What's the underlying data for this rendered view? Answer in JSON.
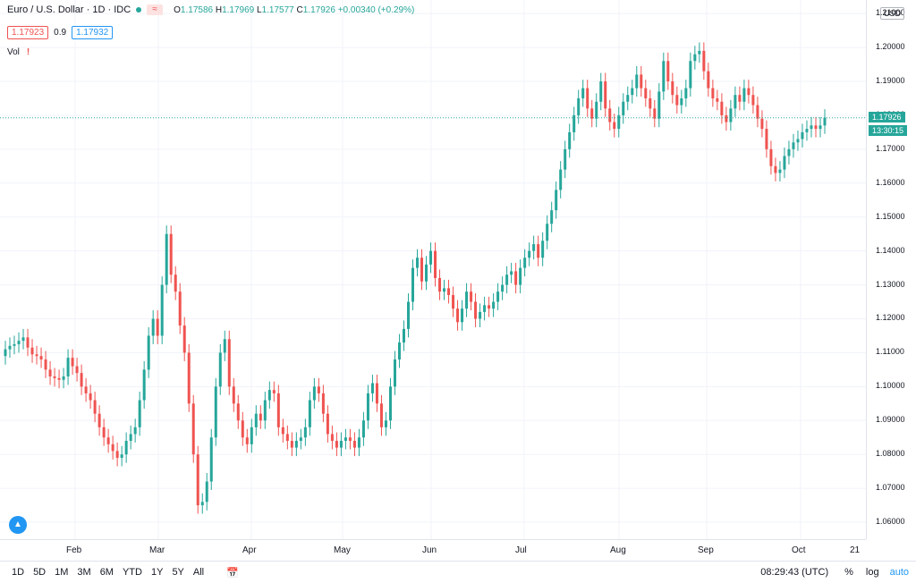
{
  "legend": {
    "symbol": "Euro / U.S. Dollar · 1D · IDC",
    "ohlc": {
      "o": "1.17586",
      "h": "1.17969",
      "l": "1.17577",
      "c": "1.17926",
      "chg": "+0.00340 (+0.29%)"
    },
    "sell": "1.17923",
    "spread": "0.9",
    "buy": "1.17932",
    "vol_label": "Vol"
  },
  "currency": "USD",
  "last_price": "1.17926",
  "countdown": "13:30:15",
  "bottom": {
    "ranges": [
      "1D",
      "5D",
      "1M",
      "3M",
      "6M",
      "YTD",
      "1Y",
      "5Y",
      "All"
    ],
    "time": "08:29:43 (UTC)",
    "pct": "%",
    "log": "log",
    "auto": "auto"
  },
  "colors": {
    "up": "#26a69a",
    "down": "#ef5350",
    "grid": "#f0f3fa",
    "accent": "#2196f3"
  },
  "chart_data": {
    "type": "candlestick",
    "title": "Euro / U.S. Dollar · 1D · IDC",
    "ylim": [
      1.055,
      1.214
    ],
    "y_ticks": [
      "1.21000",
      "1.20000",
      "1.19000",
      "1.18000",
      "1.17000",
      "1.16000",
      "1.15000",
      "1.14000",
      "1.13000",
      "1.12000",
      "1.11000",
      "1.10000",
      "1.09000",
      "1.08000",
      "1.07000",
      "1.06000"
    ],
    "x_ticks": [
      "Feb",
      "Mar",
      "Apr",
      "May",
      "Jun",
      "Jul",
      "Aug",
      "Sep",
      "Oct",
      "21"
    ],
    "closes": [
      1.111,
      1.112,
      1.1125,
      1.1135,
      1.1145,
      1.1115,
      1.1095,
      1.109,
      1.108,
      1.105,
      1.103,
      1.1025,
      1.102,
      1.103,
      1.1085,
      1.106,
      1.104,
      1.1,
      1.098,
      1.096,
      1.092,
      1.088,
      1.085,
      1.083,
      1.081,
      1.079,
      1.08,
      1.084,
      1.086,
      1.088,
      1.096,
      1.105,
      1.115,
      1.12,
      1.115,
      1.13,
      1.145,
      1.133,
      1.128,
      1.118,
      1.11,
      1.095,
      1.08,
      1.065,
      1.066,
      1.072,
      1.085,
      1.1,
      1.11,
      1.114,
      1.1,
      1.095,
      1.09,
      1.085,
      1.083,
      1.088,
      1.092,
      1.09,
      1.096,
      1.099,
      1.098,
      1.088,
      1.086,
      1.084,
      1.082,
      1.084,
      1.085,
      1.088,
      1.096,
      1.1,
      1.098,
      1.092,
      1.086,
      1.084,
      1.082,
      1.084,
      1.085,
      1.084,
      1.082,
      1.085,
      1.09,
      1.098,
      1.101,
      1.095,
      1.088,
      1.09,
      1.1,
      1.108,
      1.113,
      1.117,
      1.125,
      1.135,
      1.138,
      1.131,
      1.136,
      1.14,
      1.132,
      1.128,
      1.129,
      1.127,
      1.123,
      1.119,
      1.123,
      1.128,
      1.125,
      1.12,
      1.122,
      1.124,
      1.123,
      1.125,
      1.128,
      1.13,
      1.133,
      1.134,
      1.13,
      1.135,
      1.138,
      1.14,
      1.142,
      1.138,
      1.143,
      1.148,
      1.152,
      1.158,
      1.164,
      1.17,
      1.175,
      1.18,
      1.185,
      1.188,
      1.182,
      1.179,
      1.184,
      1.19,
      1.182,
      1.178,
      1.176,
      1.18,
      1.184,
      1.186,
      1.188,
      1.192,
      1.188,
      1.185,
      1.182,
      1.179,
      1.187,
      1.196,
      1.19,
      1.186,
      1.183,
      1.185,
      1.188,
      1.196,
      1.198,
      1.199,
      1.193,
      1.188,
      1.185,
      1.184,
      1.18,
      1.178,
      1.182,
      1.186,
      1.184,
      1.188,
      1.186,
      1.183,
      1.179,
      1.176,
      1.17,
      1.165,
      1.163,
      1.164,
      1.168,
      1.17,
      1.172,
      1.173,
      1.175,
      1.176,
      1.177,
      1.176,
      1.177,
      1.1793
    ]
  }
}
